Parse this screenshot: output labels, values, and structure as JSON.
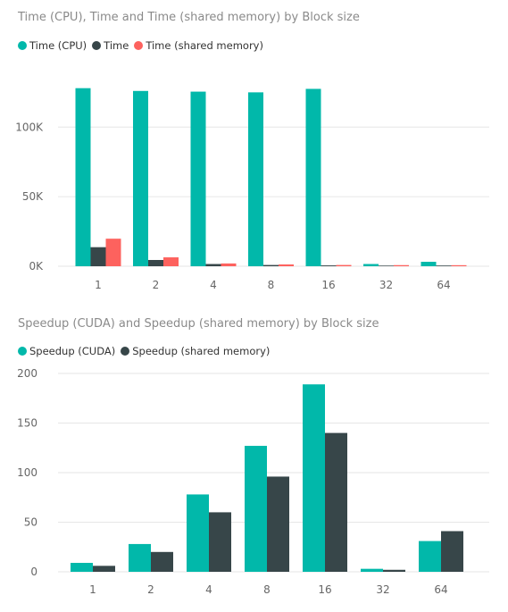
{
  "colors": {
    "teal": "#01b8aa",
    "dark": "#374649",
    "red": "#fd625e",
    "grid": "#e6e6e6"
  },
  "chart_data": [
    {
      "type": "bar",
      "title": "Time (CPU), Time and Time (shared memory) by Block size",
      "xlabel": "",
      "ylabel": "",
      "categories": [
        "1",
        "2",
        "4",
        "8",
        "16",
        "32",
        "64"
      ],
      "series": [
        {
          "name": "Time (CPU)",
          "color": "#01b8aa",
          "values": [
            128000,
            126000,
            125500,
            125000,
            127500,
            1600,
            3200
          ]
        },
        {
          "name": "Time",
          "color": "#374649",
          "values": [
            13700,
            4500,
            1600,
            900,
            600,
            450,
            500
          ]
        },
        {
          "name": "Time (shared memory)",
          "color": "#fd625e",
          "values": [
            19800,
            6400,
            2000,
            1300,
            900,
            800,
            750
          ]
        }
      ],
      "yticks": [
        0,
        50000,
        100000
      ],
      "ytick_labels": [
        "0K",
        "50K",
        "100K"
      ],
      "ylim": [
        0,
        140000
      ],
      "grid": true,
      "legend_position": "top-left"
    },
    {
      "type": "bar",
      "title": "Speedup (CUDA) and Speedup (shared memory) by Block size",
      "xlabel": "",
      "ylabel": "",
      "categories": [
        "1",
        "2",
        "4",
        "8",
        "16",
        "32",
        "64"
      ],
      "series": [
        {
          "name": "Speedup (CUDA)",
          "color": "#01b8aa",
          "values": [
            9,
            28,
            78,
            127,
            189,
            3,
            31
          ]
        },
        {
          "name": "Speedup (shared memory)",
          "color": "#374649",
          "values": [
            6,
            20,
            60,
            96,
            140,
            2,
            41
          ]
        }
      ],
      "yticks": [
        0,
        50,
        100,
        150,
        200
      ],
      "ytick_labels": [
        "0",
        "50",
        "100",
        "150",
        "200"
      ],
      "ylim": [
        0,
        200
      ],
      "grid": true,
      "legend_position": "top-left"
    }
  ]
}
